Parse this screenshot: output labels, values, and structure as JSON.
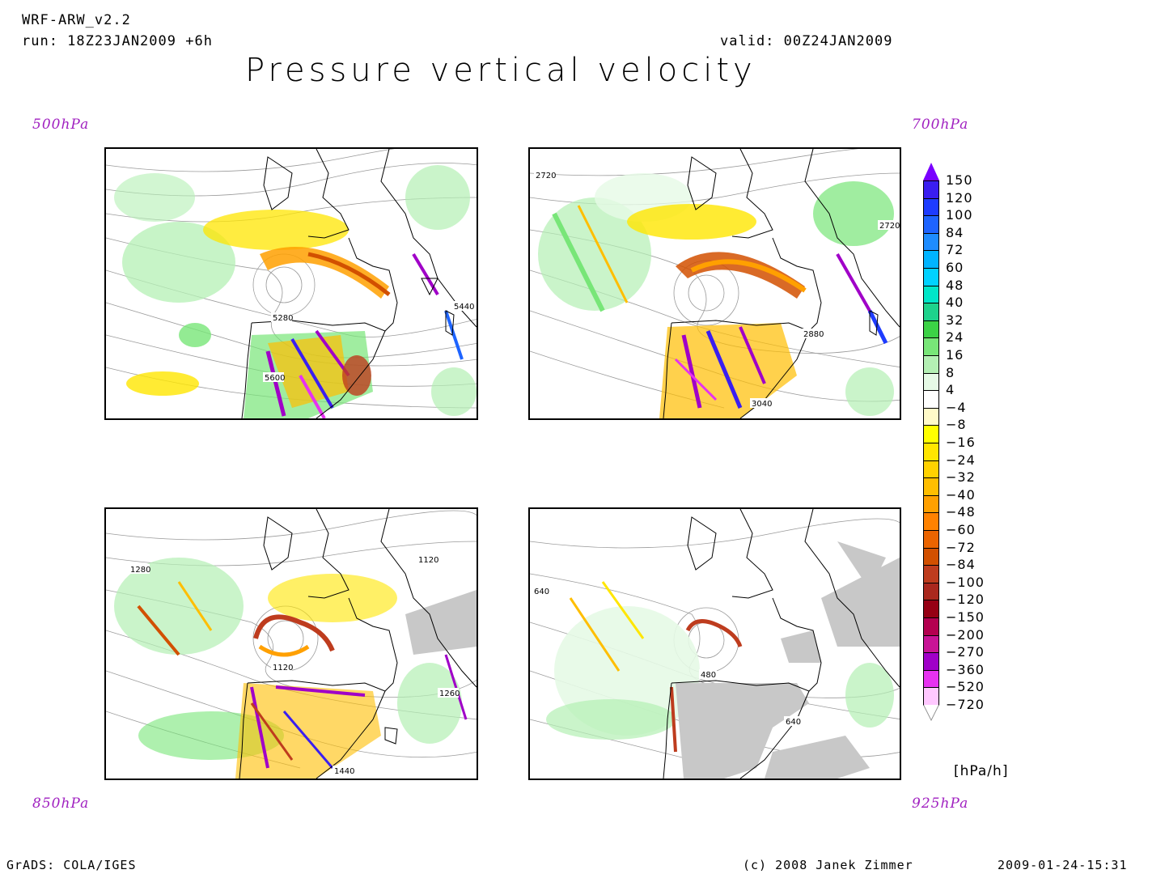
{
  "header": {
    "model": "WRF-ARW_v2.2",
    "run": "run: 18Z23JAN2009 +6h",
    "valid": "valid: 00Z24JAN2009",
    "title": "Pressure vertical velocity"
  },
  "panels": [
    {
      "level_label": "500hPa",
      "contour_labels": [
        "5280",
        "5440",
        "5600"
      ]
    },
    {
      "level_label": "700hPa",
      "contour_labels": [
        "2720",
        "2720",
        "2880",
        "3040"
      ]
    },
    {
      "level_label": "850hPa",
      "contour_labels": [
        "1280",
        "1120",
        "1120",
        "1260",
        "1440"
      ]
    },
    {
      "level_label": "925hPa",
      "contour_labels": [
        "640",
        "480",
        "640"
      ]
    }
  ],
  "colorbar": {
    "unit": "[hPa/h]",
    "levels": [
      "150",
      "120",
      "100",
      "84",
      "72",
      "60",
      "48",
      "40",
      "32",
      "24",
      "16",
      "8",
      "4",
      "−4",
      "−8",
      "−16",
      "−24",
      "−32",
      "−40",
      "−48",
      "−60",
      "−72",
      "−84",
      "−100",
      "−120",
      "−150",
      "−200",
      "−270",
      "−360",
      "−520",
      "−720"
    ],
    "colors": [
      "#7a00ff",
      "#3a1ef0",
      "#1e3cff",
      "#1e64ff",
      "#1e8cff",
      "#00b4ff",
      "#00d2ff",
      "#00e6c8",
      "#1ed28c",
      "#3cd246",
      "#78e678",
      "#b4f0b4",
      "#e6fae6",
      "#ffffff",
      "#fffac8",
      "#ffff00",
      "#ffe600",
      "#ffd200",
      "#ffbe00",
      "#ffa000",
      "#ff8200",
      "#eb6400",
      "#d25000",
      "#be3c1e",
      "#aa281e",
      "#960014",
      "#b40050",
      "#c81496",
      "#a000c8",
      "#e632f0",
      "#ffc8ff",
      "#ffffff"
    ]
  },
  "footer": {
    "software": "GrADS: COLA/IGES",
    "copyright": "(c) 2008 Janek Zimmer",
    "timestamp": "2009-01-24-15:31"
  }
}
